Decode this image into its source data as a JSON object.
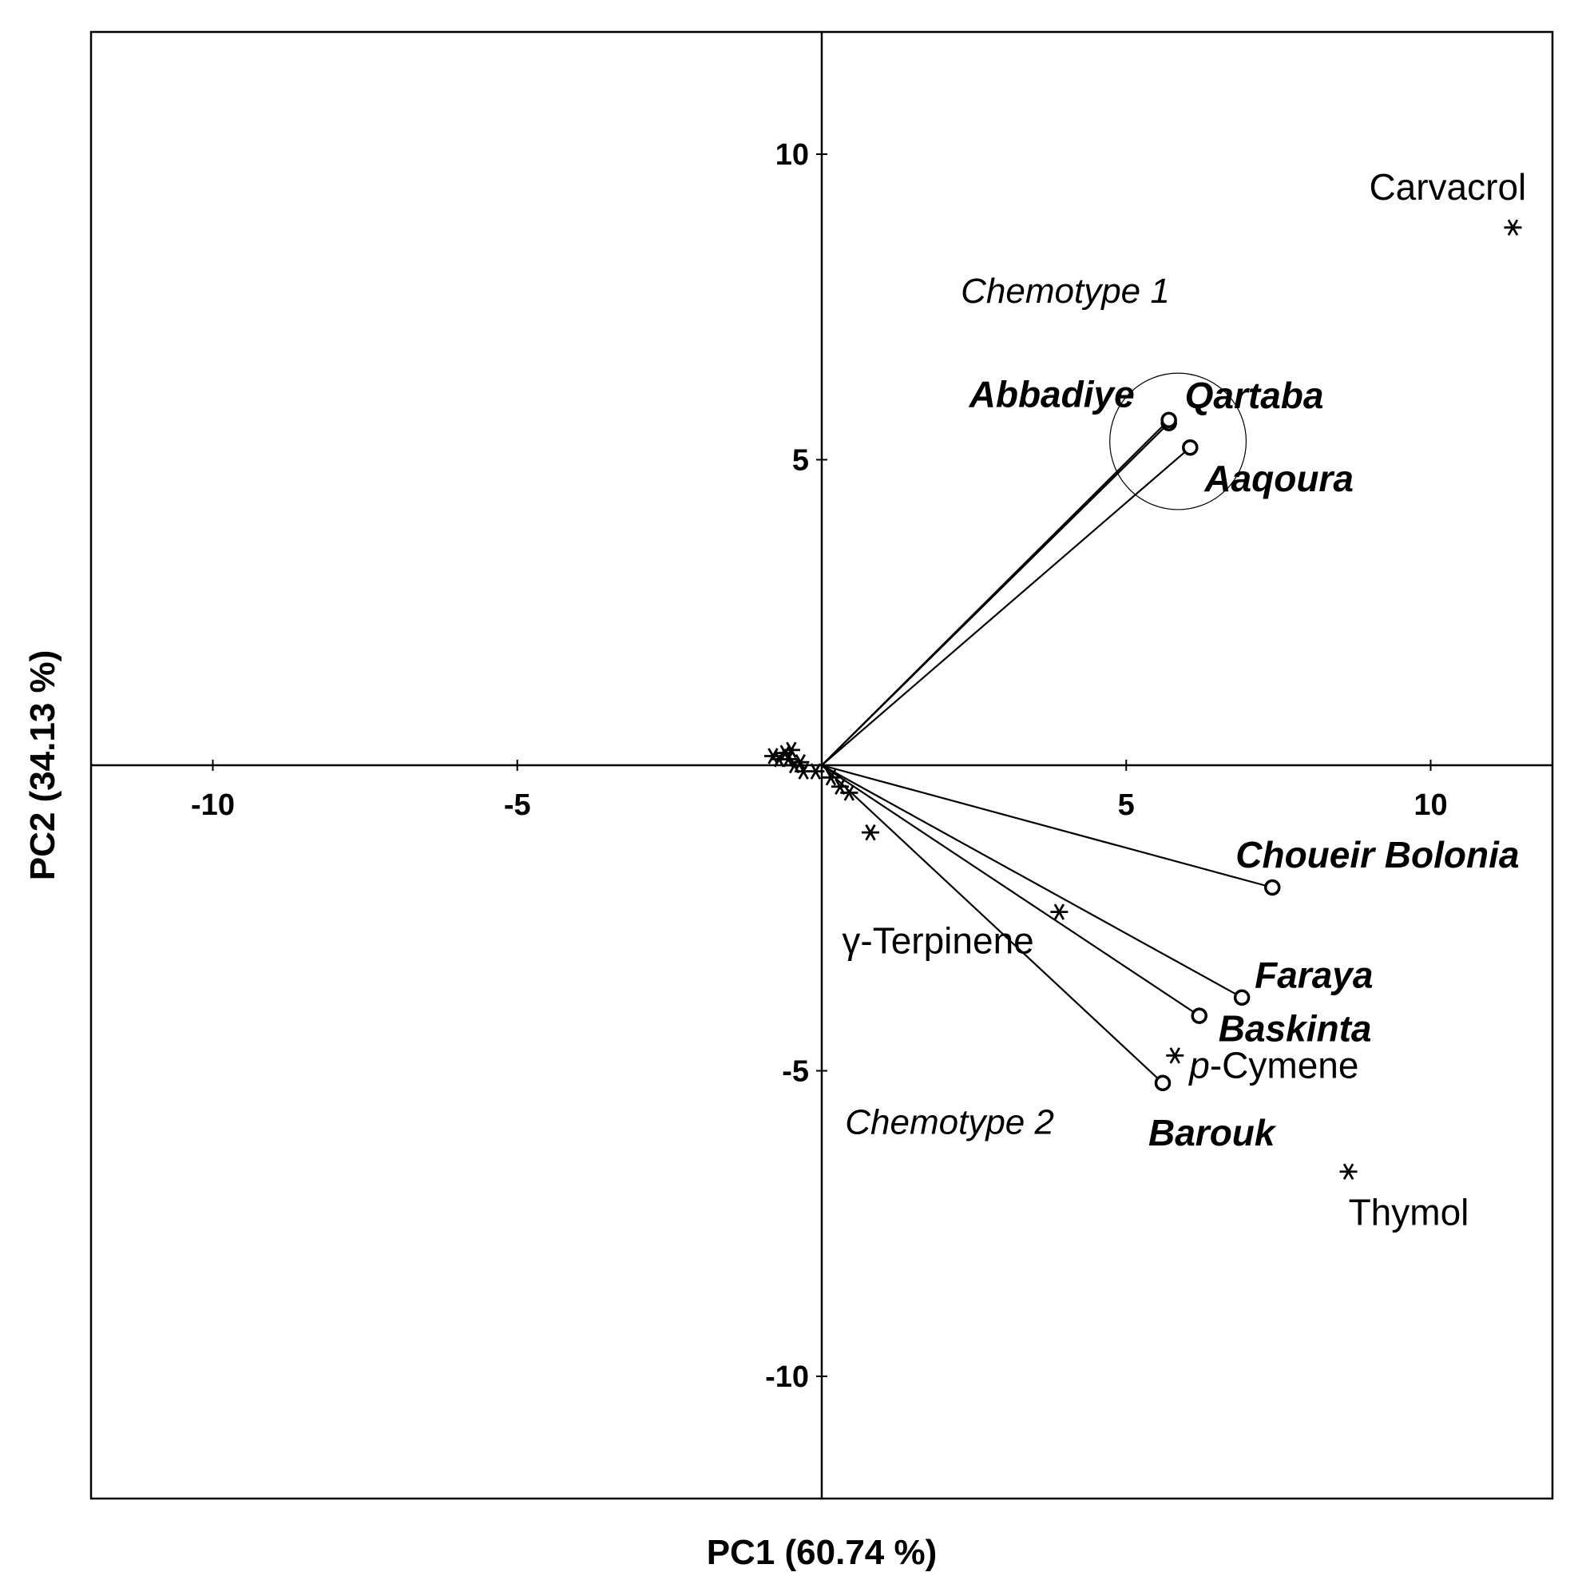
{
  "chart_data": {
    "type": "scatter",
    "subtype": "pca-biplot",
    "title": "",
    "xlabel": "PC1 (60.74 %)",
    "ylabel": "PC2 (34.13 %)",
    "xlim": [
      -12,
      12
    ],
    "ylim": [
      -12,
      12
    ],
    "x_ticks": [
      -10,
      -5,
      5,
      10
    ],
    "y_ticks": [
      10,
      5,
      -5,
      -10
    ],
    "grid": false,
    "legend": "none",
    "sites": [
      {
        "name": "Abbadiye",
        "x": 5.7,
        "y": 5.6
      },
      {
        "name": "Qartaba",
        "x": 5.7,
        "y": 5.65
      },
      {
        "name": "Aaqoura",
        "x": 6.05,
        "y": 5.2
      },
      {
        "name": "Choueir Bolonia",
        "x": 7.4,
        "y": -2.0
      },
      {
        "name": "Faraya",
        "x": 6.9,
        "y": -3.8
      },
      {
        "name": "Baskinta",
        "x": 6.2,
        "y": -4.1
      },
      {
        "name": "Barouk",
        "x": 5.6,
        "y": -5.2
      }
    ],
    "compounds": [
      {
        "name": "Carvacrol",
        "x": 11.35,
        "y": 8.8
      },
      {
        "name": "Thymol",
        "x": 8.65,
        "y": -6.65
      },
      {
        "name": "p-Cymene",
        "x": 5.8,
        "y": -4.75
      },
      {
        "name": "γ-Terpinene",
        "x": 3.9,
        "y": -2.4
      },
      {
        "name": "",
        "x": 0.8,
        "y": -1.1
      },
      {
        "name": "",
        "x": 0.45,
        "y": -0.45
      },
      {
        "name": "",
        "x": 0.3,
        "y": -0.35
      },
      {
        "name": "",
        "x": 0.15,
        "y": -0.2
      },
      {
        "name": "",
        "x": -0.1,
        "y": -0.1
      },
      {
        "name": "",
        "x": -0.3,
        "y": -0.1
      },
      {
        "name": "",
        "x": -0.45,
        "y": 0.0
      },
      {
        "name": "",
        "x": -0.55,
        "y": 0.1
      },
      {
        "name": "",
        "x": -0.6,
        "y": 0.2
      },
      {
        "name": "",
        "x": -0.7,
        "y": 0.1
      },
      {
        "name": "",
        "x": -0.8,
        "y": 0.15
      },
      {
        "name": "",
        "x": -0.5,
        "y": 0.25
      },
      {
        "name": "",
        "x": -0.35,
        "y": 0.05
      }
    ],
    "chemotypes": [
      {
        "name": "Chemotype 1",
        "x": 4.0,
        "y": 7.75
      },
      {
        "name": "Chemotype 2",
        "x": 2.1,
        "y": -5.85
      }
    ],
    "cluster_circle": {
      "cx": 5.85,
      "cy": 5.3,
      "r": 1.12
    }
  }
}
